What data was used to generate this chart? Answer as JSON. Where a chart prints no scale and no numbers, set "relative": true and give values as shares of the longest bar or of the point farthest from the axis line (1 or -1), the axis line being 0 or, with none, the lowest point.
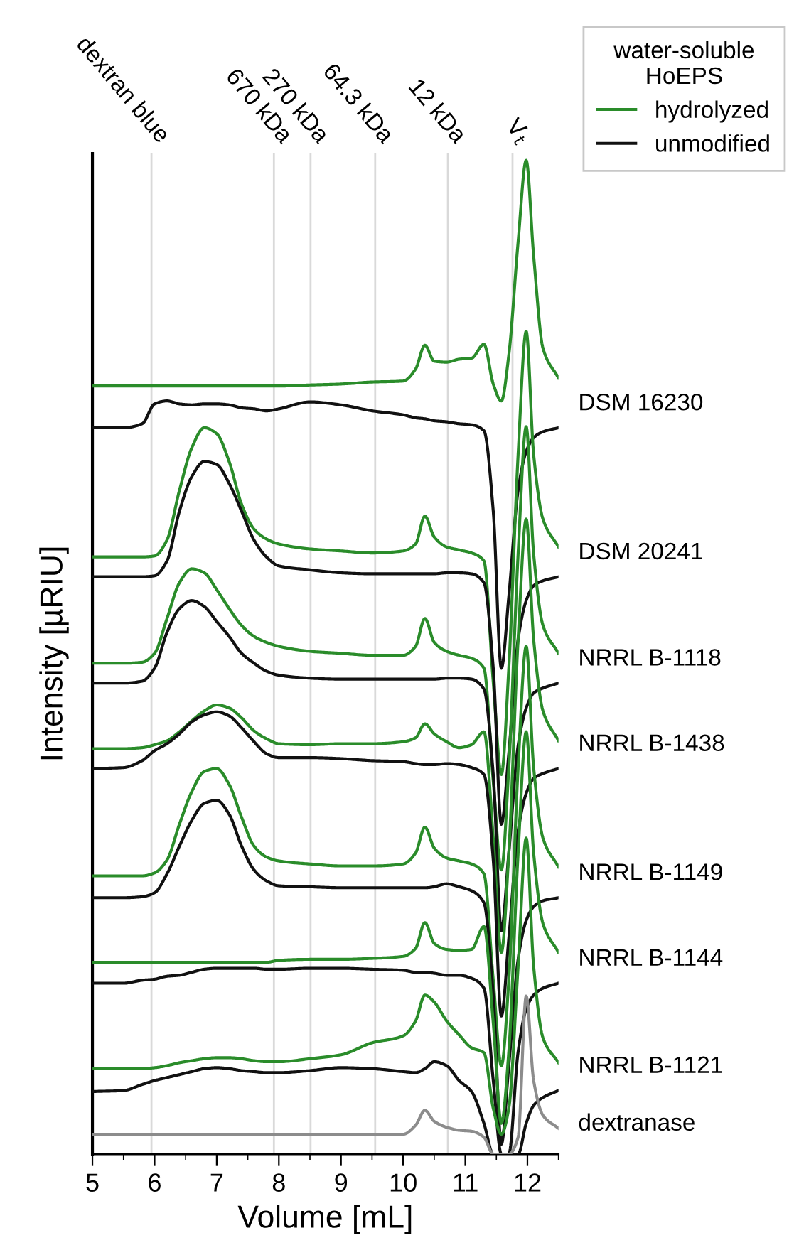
{
  "chart_data": {
    "type": "line",
    "relative": true,
    "xlabel": "Volume [mL]",
    "ylabel": "Intensity [µRIU]",
    "legend_title": "water-soluble\nHoEPS",
    "xlim": [
      5,
      12.5
    ],
    "xticks": [
      5,
      6,
      7,
      8,
      9,
      10,
      11,
      12
    ],
    "tick_labels": "x",
    "grid": false,
    "legend": "top right",
    "line_style": "solid",
    "marker": "none",
    "x": [
      5,
      5.5,
      5.8,
      6.0,
      6.2,
      6.4,
      6.6,
      6.8,
      7.0,
      7.2,
      7.4,
      7.6,
      7.8,
      8.0,
      8.5,
      9.0,
      9.5,
      10.0,
      10.2,
      10.35,
      10.5,
      10.7,
      10.9,
      11.1,
      11.3,
      11.45,
      11.58,
      11.7,
      11.85,
      11.98,
      12.1,
      12.25,
      12.5
    ],
    "series": [
      {
        "name": "hydrolyzed",
        "color": "#2a8c2a",
        "values": [
          0.773,
          0.773,
          0.773,
          0.773,
          0.773,
          0.773,
          0.773,
          0.773,
          0.773,
          0.773,
          0.773,
          0.773,
          0.773,
          0.773,
          0.774,
          0.775,
          0.777,
          0.778,
          0.79,
          0.814,
          0.798,
          0.797,
          0.8,
          0.801,
          0.815,
          0.775,
          0.758,
          0.804,
          0.918,
          1.0,
          0.904,
          0.811,
          0.781
        ]
      },
      {
        "name": "unmodified",
        "color": "#111111",
        "values": [
          0.731,
          0.731,
          0.735,
          0.755,
          0.758,
          0.755,
          0.754,
          0.755,
          0.755,
          0.754,
          0.751,
          0.75,
          0.748,
          0.75,
          0.757,
          0.754,
          0.748,
          0.744,
          0.741,
          0.74,
          0.738,
          0.737,
          0.735,
          0.734,
          0.728,
          0.647,
          0.489,
          0.561,
          0.668,
          0.707,
          0.721,
          0.727,
          0.731
        ]
      },
      {
        "color": "#2a8c2a",
        "values": [
          0.601,
          0.601,
          0.601,
          0.602,
          0.618,
          0.668,
          0.711,
          0.731,
          0.725,
          0.697,
          0.654,
          0.629,
          0.619,
          0.614,
          0.609,
          0.607,
          0.605,
          0.607,
          0.614,
          0.642,
          0.621,
          0.611,
          0.608,
          0.605,
          0.597,
          0.475,
          0.382,
          0.489,
          0.704,
          0.828,
          0.704,
          0.639,
          0.611
        ]
      },
      {
        "color": "#111111",
        "values": [
          0.581,
          0.581,
          0.581,
          0.582,
          0.597,
          0.647,
          0.682,
          0.697,
          0.694,
          0.675,
          0.647,
          0.618,
          0.601,
          0.592,
          0.588,
          0.585,
          0.584,
          0.584,
          0.584,
          0.584,
          0.584,
          0.585,
          0.585,
          0.584,
          0.575,
          0.489,
          0.332,
          0.403,
          0.518,
          0.557,
          0.572,
          0.577,
          0.581
        ]
      },
      {
        "color": "#2a8c2a",
        "values": [
          0.494,
          0.494,
          0.495,
          0.504,
          0.539,
          0.575,
          0.589,
          0.585,
          0.568,
          0.549,
          0.532,
          0.521,
          0.515,
          0.511,
          0.506,
          0.504,
          0.502,
          0.502,
          0.511,
          0.539,
          0.515,
          0.506,
          0.502,
          0.499,
          0.489,
          0.375,
          0.286,
          0.389,
          0.604,
          0.732,
          0.604,
          0.532,
          0.504
        ]
      },
      {
        "color": "#111111",
        "values": [
          0.474,
          0.474,
          0.476,
          0.489,
          0.525,
          0.549,
          0.557,
          0.551,
          0.536,
          0.521,
          0.504,
          0.494,
          0.486,
          0.482,
          0.479,
          0.478,
          0.478,
          0.478,
          0.478,
          0.478,
          0.478,
          0.479,
          0.479,
          0.478,
          0.468,
          0.382,
          0.225,
          0.303,
          0.411,
          0.449,
          0.464,
          0.469,
          0.474
        ]
      },
      {
        "color": "#2a8c2a",
        "values": [
          0.408,
          0.408,
          0.409,
          0.412,
          0.416,
          0.425,
          0.436,
          0.446,
          0.452,
          0.449,
          0.439,
          0.426,
          0.418,
          0.413,
          0.412,
          0.413,
          0.413,
          0.415,
          0.419,
          0.433,
          0.423,
          0.415,
          0.409,
          0.412,
          0.425,
          0.318,
          0.203,
          0.303,
          0.518,
          0.639,
          0.518,
          0.446,
          0.416
        ]
      },
      {
        "color": "#111111",
        "values": [
          0.388,
          0.389,
          0.396,
          0.406,
          0.413,
          0.423,
          0.435,
          0.442,
          0.445,
          0.441,
          0.429,
          0.415,
          0.403,
          0.399,
          0.399,
          0.398,
          0.396,
          0.395,
          0.393,
          0.392,
          0.392,
          0.393,
          0.392,
          0.389,
          0.382,
          0.296,
          0.139,
          0.217,
          0.325,
          0.363,
          0.378,
          0.383,
          0.388
        ]
      },
      {
        "color": "#2a8c2a",
        "values": [
          0.28,
          0.28,
          0.28,
          0.283,
          0.296,
          0.332,
          0.365,
          0.385,
          0.388,
          0.372,
          0.339,
          0.31,
          0.299,
          0.295,
          0.292,
          0.29,
          0.29,
          0.292,
          0.303,
          0.329,
          0.308,
          0.298,
          0.295,
          0.292,
          0.282,
          0.175,
          0.089,
          0.175,
          0.389,
          0.511,
          0.389,
          0.318,
          0.289
        ]
      },
      {
        "color": "#111111",
        "values": [
          0.258,
          0.258,
          0.259,
          0.263,
          0.282,
          0.31,
          0.336,
          0.353,
          0.356,
          0.342,
          0.31,
          0.286,
          0.275,
          0.27,
          0.269,
          0.268,
          0.268,
          0.268,
          0.268,
          0.268,
          0.269,
          0.272,
          0.269,
          0.265,
          0.253,
          0.16,
          0.01,
          0.089,
          0.196,
          0.235,
          0.249,
          0.255,
          0.258
        ]
      },
      {
        "color": "#2a8c2a",
        "values": [
          0.193,
          0.193,
          0.193,
          0.193,
          0.193,
          0.193,
          0.193,
          0.193,
          0.193,
          0.193,
          0.193,
          0.193,
          0.193,
          0.195,
          0.196,
          0.196,
          0.197,
          0.199,
          0.207,
          0.233,
          0.212,
          0.206,
          0.205,
          0.206,
          0.229,
          0.132,
          0.031,
          0.103,
          0.303,
          0.425,
          0.303,
          0.232,
          0.203
        ]
      },
      {
        "color": "#111111",
        "values": [
          0.172,
          0.172,
          0.175,
          0.176,
          0.179,
          0.18,
          0.183,
          0.186,
          0.187,
          0.187,
          0.187,
          0.187,
          0.186,
          0.186,
          0.187,
          0.187,
          0.186,
          0.185,
          0.183,
          0.183,
          0.182,
          0.18,
          0.18,
          0.177,
          0.167,
          0.074,
          0,
          0,
          0.103,
          0.146,
          0.16,
          0.167,
          0.172
        ]
      },
      {
        "color": "#2a8c2a",
        "values": [
          0.086,
          0.086,
          0.086,
          0.087,
          0.089,
          0.092,
          0.094,
          0.096,
          0.097,
          0.097,
          0.096,
          0.094,
          0.093,
          0.093,
          0.096,
          0.1,
          0.112,
          0.119,
          0.134,
          0.16,
          0.153,
          0.134,
          0.12,
          0.107,
          0.102,
          0.046,
          0.02,
          0.046,
          0.189,
          0.318,
          0.189,
          0.117,
          0.092
        ]
      },
      {
        "color": "#111111",
        "values": [
          0.063,
          0.064,
          0.07,
          0.074,
          0.077,
          0.08,
          0.083,
          0.086,
          0.087,
          0.086,
          0.084,
          0.083,
          0.082,
          0.082,
          0.084,
          0.087,
          0.086,
          0.083,
          0.082,
          0.086,
          0.093,
          0.089,
          0.074,
          0.063,
          0.031,
          0,
          0,
          0,
          0,
          0.031,
          0.049,
          0.057,
          0.064
        ]
      },
      {
        "color": "#8c8c8c",
        "values": [
          0.02,
          0.02,
          0.02,
          0.02,
          0.02,
          0.02,
          0.02,
          0.02,
          0.02,
          0.02,
          0.02,
          0.02,
          0.02,
          0.02,
          0.02,
          0.02,
          0.02,
          0.02,
          0.029,
          0.044,
          0.033,
          0.027,
          0.024,
          0.023,
          0.017,
          0,
          0,
          0,
          0.017,
          0.159,
          0.074,
          0.039,
          0.026
        ]
      }
    ],
    "ref_lines": [
      {
        "axis": "x",
        "value": 5.95,
        "label": "dextran blue",
        "color": "#d9d9d9"
      },
      {
        "axis": "x",
        "value": 7.92,
        "label": "670 kDa",
        "color": "#d9d9d9"
      },
      {
        "axis": "x",
        "value": 8.51,
        "label": "270 kDa",
        "color": "#d9d9d9"
      },
      {
        "axis": "x",
        "value": 9.55,
        "label": "64.3 kDa",
        "color": "#d9d9d9"
      },
      {
        "axis": "x",
        "value": 10.72,
        "label": "12 kDa",
        "color": "#d9d9d9"
      },
      {
        "axis": "x",
        "value": 11.76,
        "label": "V$_{t}$",
        "color": "#d9d9d9"
      }
    ],
    "annotations": [
      "DSM 16230",
      "DSM 20241",
      "NRRL B-1118",
      "NRRL B-1438",
      "NRRL B-1149",
      "NRRL B-1144",
      "NRRL B-1121",
      "dextranase"
    ]
  }
}
